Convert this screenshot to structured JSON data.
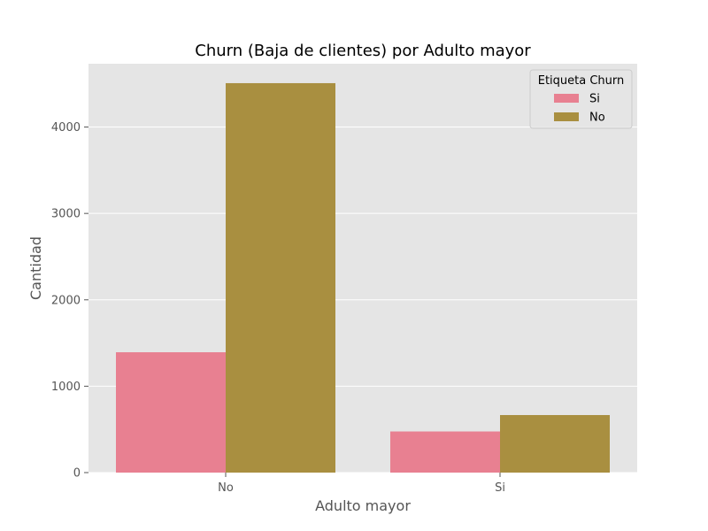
{
  "chart_data": {
    "type": "bar",
    "title": "Churn (Baja de clientes) por Adulto mayor",
    "xlabel": "Adulto mayor",
    "ylabel": "Cantidad",
    "categories": [
      "No",
      "Si"
    ],
    "series": [
      {
        "name": "Si",
        "color": "#e88091",
        "values": [
          1393,
          476
        ]
      },
      {
        "name": "No",
        "color": "#a98f40",
        "values": [
          4508,
          666
        ]
      }
    ],
    "ylim": [
      0,
      4733
    ],
    "yticks": [
      0,
      1000,
      2000,
      3000,
      4000
    ],
    "grid": true,
    "legend": {
      "title": "Etiqueta Churn",
      "position": "top-right"
    },
    "style": {
      "plot_background": "#e5e5e5",
      "grid_color": "#ffffff"
    }
  }
}
